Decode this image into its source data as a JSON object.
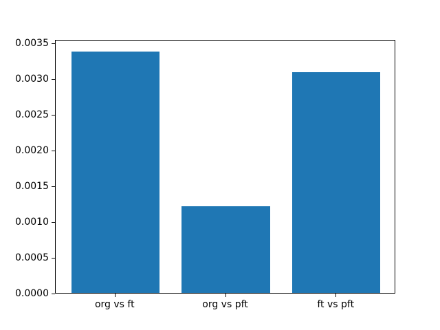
{
  "chart_data": {
    "type": "bar",
    "categories": [
      "org vs ft",
      "org vs pft",
      "ft vs pft"
    ],
    "values": [
      0.00338,
      0.00121,
      0.00309
    ],
    "title": "",
    "xlabel": "",
    "ylabel": "",
    "ylim": [
      0,
      0.003549
    ],
    "xlim": [
      -0.54,
      2.54
    ],
    "bar_width": 0.8,
    "yticks": [
      0.0,
      0.0005,
      0.001,
      0.0015,
      0.002,
      0.0025,
      0.003,
      0.0035
    ],
    "ytick_labels": [
      "0.0000",
      "0.0005",
      "0.0010",
      "0.0015",
      "0.0020",
      "0.0025",
      "0.0030",
      "0.0035"
    ],
    "bar_color": "#1f77b4",
    "background_color": "#ffffff",
    "grid": false,
    "legend": "none"
  }
}
